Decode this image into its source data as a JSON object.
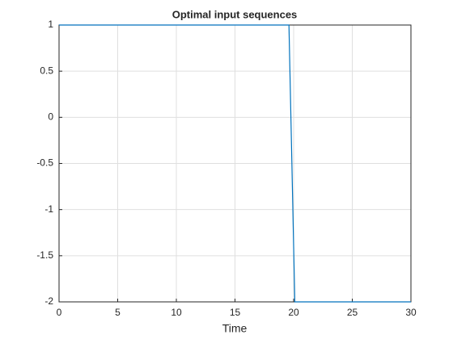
{
  "chart_data": {
    "type": "line",
    "title": "Optimal input sequences",
    "xlabel": "Time",
    "x": [
      0,
      19.6,
      20.1,
      30
    ],
    "series": [
      {
        "color": "#0072bd",
        "values": [
          1,
          1,
          -2,
          -2
        ]
      }
    ],
    "xlim": [
      0,
      30
    ],
    "xticks": [
      0,
      5,
      10,
      15,
      20,
      25,
      30
    ],
    "ylim": [
      -2,
      1
    ],
    "yticks": [
      -2,
      -1.5,
      -1,
      -0.5,
      0,
      0.5,
      1
    ],
    "grid": true
  }
}
